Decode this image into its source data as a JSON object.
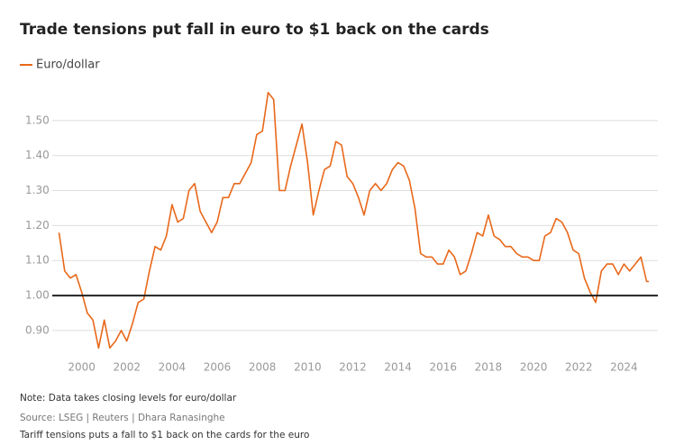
{
  "chart_data": {
    "type": "line",
    "title": "Trade tensions put fall in euro to $1 back on the cards",
    "note": "Note: Data takes closing levels for euro/dollar",
    "source": "Source: LSEG | Reuters | Dhara Ranasinghe",
    "caption": "Tariff tensions puts a fall to $1 back on the cards for the euro",
    "x": [
      1999.0,
      1999.25,
      1999.5,
      1999.75,
      2000.0,
      2000.25,
      2000.5,
      2000.75,
      2001.0,
      2001.25,
      2001.5,
      2001.75,
      2002.0,
      2002.25,
      2002.5,
      2002.75,
      2003.0,
      2003.25,
      2003.5,
      2003.75,
      2004.0,
      2004.25,
      2004.5,
      2004.75,
      2005.0,
      2005.25,
      2005.5,
      2005.75,
      2006.0,
      2006.25,
      2006.5,
      2006.75,
      2007.0,
      2007.25,
      2007.5,
      2007.75,
      2008.0,
      2008.25,
      2008.5,
      2008.75,
      2009.0,
      2009.25,
      2009.5,
      2009.75,
      2010.0,
      2010.25,
      2010.5,
      2010.75,
      2011.0,
      2011.25,
      2011.5,
      2011.75,
      2012.0,
      2012.25,
      2012.5,
      2012.75,
      2013.0,
      2013.25,
      2013.5,
      2013.75,
      2014.0,
      2014.25,
      2014.5,
      2014.75,
      2015.0,
      2015.25,
      2015.5,
      2015.75,
      2016.0,
      2016.25,
      2016.5,
      2016.75,
      2017.0,
      2017.25,
      2017.5,
      2017.75,
      2018.0,
      2018.25,
      2018.5,
      2018.75,
      2019.0,
      2019.25,
      2019.5,
      2019.75,
      2020.0,
      2020.25,
      2020.5,
      2020.75,
      2021.0,
      2021.25,
      2021.5,
      2021.75,
      2022.0,
      2022.25,
      2022.5,
      2022.75,
      2023.0,
      2023.25,
      2023.5,
      2023.75,
      2024.0,
      2024.25,
      2024.5,
      2024.75,
      2025.0,
      2025.1
    ],
    "series": [
      {
        "name": "Euro/dollar",
        "color": "#e8681a",
        "values": [
          1.18,
          1.07,
          1.05,
          1.06,
          1.01,
          0.95,
          0.93,
          0.85,
          0.93,
          0.85,
          0.87,
          0.9,
          0.87,
          0.92,
          0.98,
          0.99,
          1.07,
          1.14,
          1.13,
          1.17,
          1.26,
          1.21,
          1.22,
          1.3,
          1.32,
          1.24,
          1.21,
          1.18,
          1.21,
          1.28,
          1.28,
          1.32,
          1.32,
          1.35,
          1.38,
          1.46,
          1.47,
          1.58,
          1.56,
          1.3,
          1.3,
          1.37,
          1.43,
          1.49,
          1.38,
          1.23,
          1.3,
          1.36,
          1.37,
          1.44,
          1.43,
          1.34,
          1.32,
          1.28,
          1.23,
          1.3,
          1.32,
          1.3,
          1.32,
          1.36,
          1.38,
          1.37,
          1.33,
          1.25,
          1.12,
          1.11,
          1.11,
          1.09,
          1.09,
          1.13,
          1.11,
          1.06,
          1.07,
          1.12,
          1.18,
          1.17,
          1.23,
          1.17,
          1.16,
          1.14,
          1.14,
          1.12,
          1.11,
          1.11,
          1.1,
          1.1,
          1.17,
          1.18,
          1.22,
          1.21,
          1.18,
          1.13,
          1.12,
          1.05,
          1.01,
          0.98,
          1.07,
          1.09,
          1.09,
          1.06,
          1.09,
          1.07,
          1.09,
          1.11,
          1.04,
          1.04
        ]
      }
    ],
    "reference_line": 1,
    "xlim": [
      1998.7,
      2025.5
    ],
    "xticks": [
      2000,
      2002,
      2004,
      2006,
      2008,
      2010,
      2012,
      2014,
      2016,
      2018,
      2020,
      2022,
      2024
    ],
    "ylim": [
      0.82,
      1.6
    ],
    "yticks": [
      {
        "value": 0.9,
        "label": "0.90"
      },
      {
        "value": 1.0,
        "label": "1.00"
      },
      {
        "value": 1.1,
        "label": "1.10"
      },
      {
        "value": 1.2,
        "label": "1.20"
      },
      {
        "value": 1.3,
        "label": "1.30"
      },
      {
        "value": 1.4,
        "label": "1.40"
      },
      {
        "value": 1.5,
        "label": "1.50"
      }
    ],
    "grid": true
  }
}
